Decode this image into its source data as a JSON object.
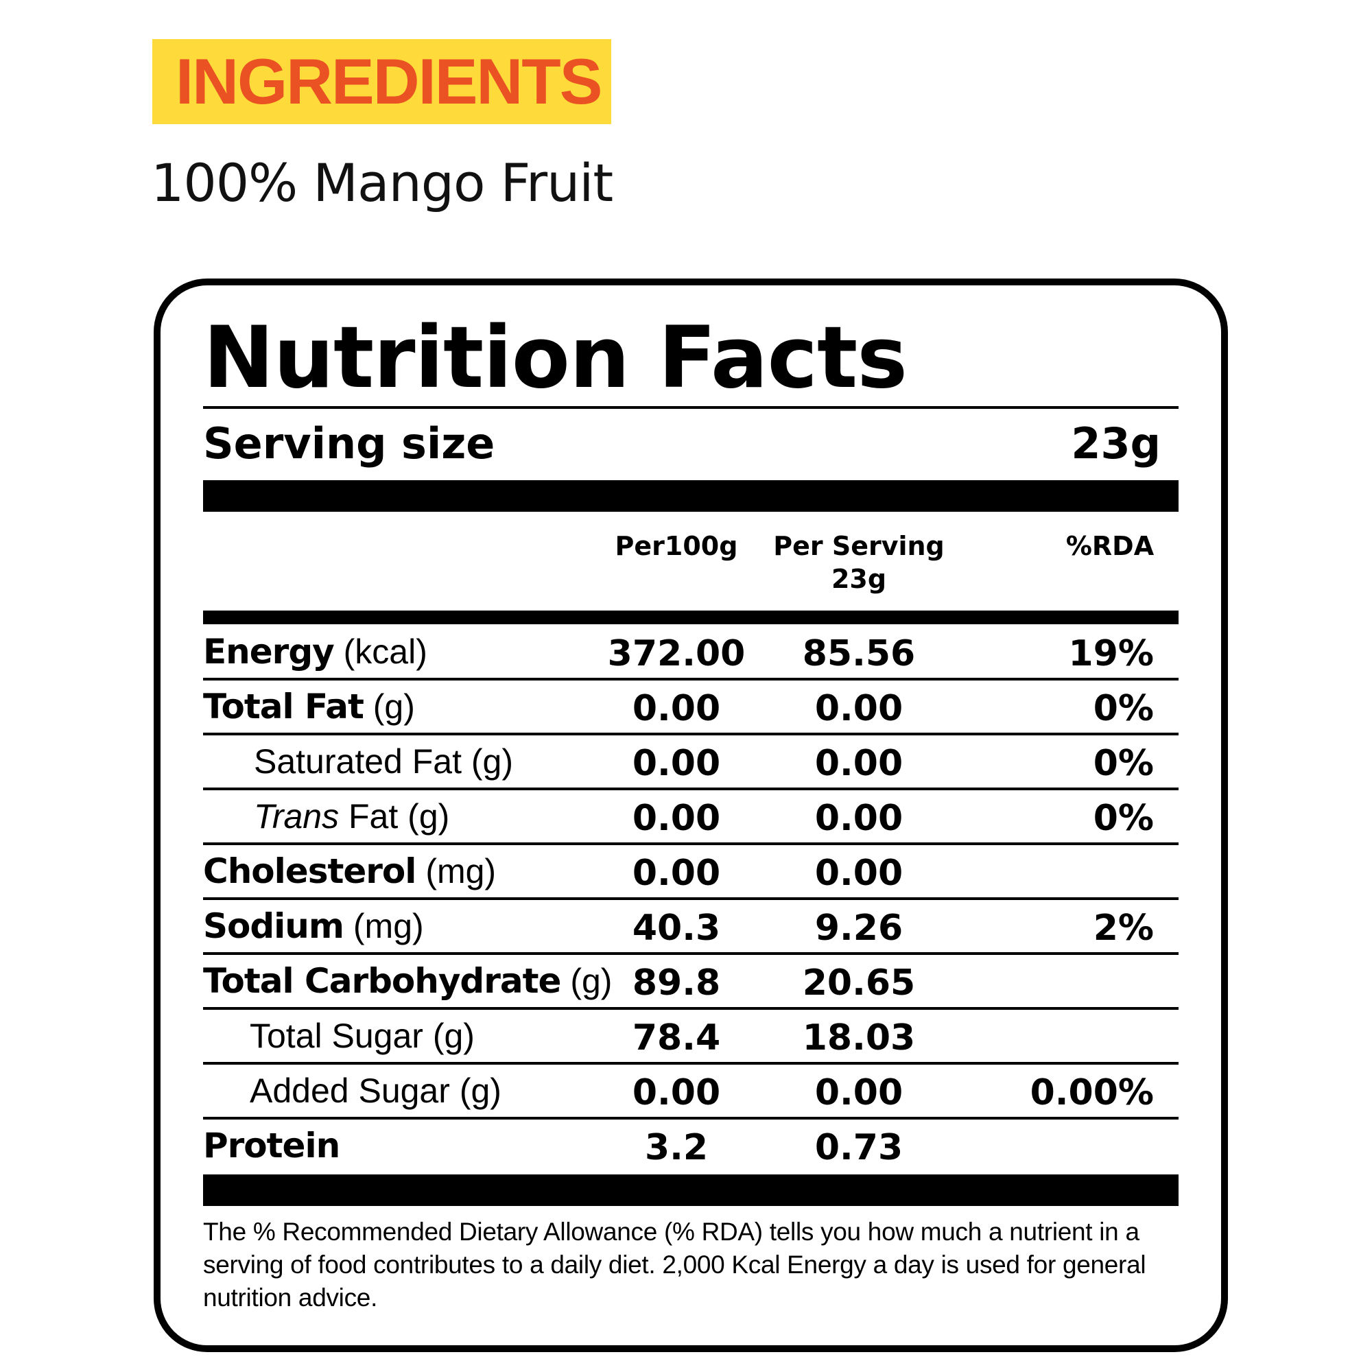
{
  "ingredients": {
    "heading": "INGREDIENTS",
    "text": "100% Mango Fruit"
  },
  "nutrition": {
    "title": "Nutrition Facts",
    "serving_size_label": "Serving size",
    "serving_size_value": "23g",
    "columns": {
      "per100g": "Per100g",
      "per_serving_line1": "Per Serving",
      "per_serving_line2": "23g",
      "rda": "%RDA"
    },
    "rows": [
      {
        "name": "Energy",
        "unit": "(kcal)",
        "bold": true,
        "per100g": "372.00",
        "per_serving": "85.56",
        "rda": "19%"
      },
      {
        "name": "Total Fat",
        "unit": "(g)",
        "bold": true,
        "per100g": "0.00",
        "per_serving": "0.00",
        "rda": "0%"
      },
      {
        "name": "Saturated Fat",
        "unit": "(g)",
        "bold": false,
        "per100g": "0.00",
        "per_serving": "0.00",
        "rda": "0%"
      },
      {
        "name_italic": "Trans",
        "name": "Fat",
        "unit": "(g)",
        "bold": false,
        "per100g": "0.00",
        "per_serving": "0.00",
        "rda": "0%"
      },
      {
        "name": "Cholesterol",
        "unit": "(mg)",
        "bold": true,
        "per100g": "0.00",
        "per_serving": "0.00",
        "rda": ""
      },
      {
        "name": "Sodium",
        "unit": "(mg)",
        "bold": true,
        "per100g": "40.3",
        "per_serving": "9.26",
        "rda": "2%"
      },
      {
        "name": "Total Carbohydrate",
        "unit": "(g)",
        "bold": true,
        "per100g": "89.8",
        "per_serving": "20.65",
        "rda": ""
      },
      {
        "name": "Total Sugar",
        "unit": "(g)",
        "bold": false,
        "per100g": "78.4",
        "per_serving": "18.03",
        "rda": ""
      },
      {
        "name": "Added Sugar",
        "unit": "(g)",
        "bold": false,
        "per100g": "0.00",
        "per_serving": "0.00",
        "rda": "0.00%"
      },
      {
        "name": "Protein",
        "unit": "",
        "bold": true,
        "per100g": "3.2",
        "per_serving": "0.73",
        "rda": ""
      }
    ],
    "footnote": "The % Recommended Dietary Allowance (% RDA) tells you how much a nutrient in a serving of food contributes to a daily diet. 2,000 Kcal Energy a day is used for general nutrition advice."
  },
  "colors": {
    "badge_background": "#fedb3a",
    "badge_text": "#ea5123",
    "text": "#000000"
  }
}
